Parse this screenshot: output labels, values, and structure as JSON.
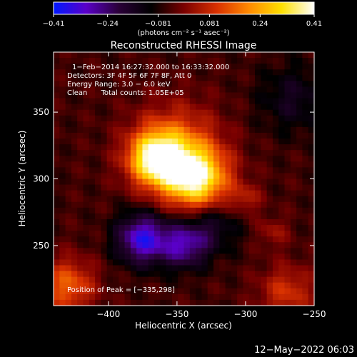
{
  "colorbar": {
    "ticks": [
      {
        "value": -0.41,
        "label": "−0.41"
      },
      {
        "value": -0.24,
        "label": "−0.24"
      },
      {
        "value": -0.081,
        "label": "−0.081"
      },
      {
        "value": 0.081,
        "label": "0.081"
      },
      {
        "value": 0.24,
        "label": "0.24"
      },
      {
        "value": 0.41,
        "label": "0.41"
      }
    ],
    "range": [
      -0.41,
      0.41
    ],
    "colors": [
      "#0018ff",
      "#5a00c8",
      "#2a0038",
      "#000000",
      "#7a0000",
      "#d83000",
      "#ff8a00",
      "#ffe000",
      "#ffffff"
    ]
  },
  "chart_data": {
    "type": "heatmap",
    "title": "Reconstructed RHESSI Image",
    "xlabel": "Heliocentric X (arcsec)",
    "ylabel": "Heliocentric Y (arcsec)",
    "units_label": "(photons cm⁻² s⁻¹ asec⁻²)",
    "xlim": [
      -440,
      -250
    ],
    "ylim": [
      205,
      395
    ],
    "x_ticks": [
      {
        "value": -400,
        "label": "−400"
      },
      {
        "value": -350,
        "label": "−350"
      },
      {
        "value": -300,
        "label": "−300"
      },
      {
        "value": -250,
        "label": "−250"
      }
    ],
    "y_ticks": [
      {
        "value": 250,
        "label": "250"
      },
      {
        "value": 300,
        "label": "300"
      },
      {
        "value": 350,
        "label": "350"
      }
    ],
    "info_lines": [
      "1−Feb−2014 16:27:32.000 to 16:33:32.000",
      "Detectors: 3F 4F 5F 6F 7F 8F, Att 0",
      "Energy Range: 3.0 − 6.0 keV",
      "Clean      Total counts: 1.05E+05"
    ],
    "peak_text": "Position of Peak = [−335,298]",
    "peak": {
      "x": -335,
      "y": 298,
      "value": 0.41
    },
    "sources": [
      {
        "x": -365,
        "y": 315,
        "sigma": 14,
        "amp": 0.4
      },
      {
        "x": -336,
        "y": 300,
        "sigma": 16,
        "amp": 0.41
      },
      {
        "x": -350,
        "y": 325,
        "sigma": 22,
        "amp": 0.18
      },
      {
        "x": -300,
        "y": 285,
        "sigma": 8,
        "amp": 0.1
      },
      {
        "x": -375,
        "y": 255,
        "sigma": 13,
        "amp": -0.3
      },
      {
        "x": -345,
        "y": 250,
        "sigma": 12,
        "amp": -0.22
      },
      {
        "x": -325,
        "y": 265,
        "sigma": 14,
        "amp": -0.12
      },
      {
        "x": -265,
        "y": 360,
        "sigma": 18,
        "amp": -0.1
      },
      {
        "x": -430,
        "y": 220,
        "sigma": 14,
        "amp": 0.2
      },
      {
        "x": -270,
        "y": 215,
        "sigma": 14,
        "amp": 0.14
      },
      {
        "x": -280,
        "y": 260,
        "sigma": 8,
        "amp": 0.08
      }
    ],
    "background": -0.05
  },
  "footer": {
    "timestamp": "12−May−2022 06:03"
  }
}
